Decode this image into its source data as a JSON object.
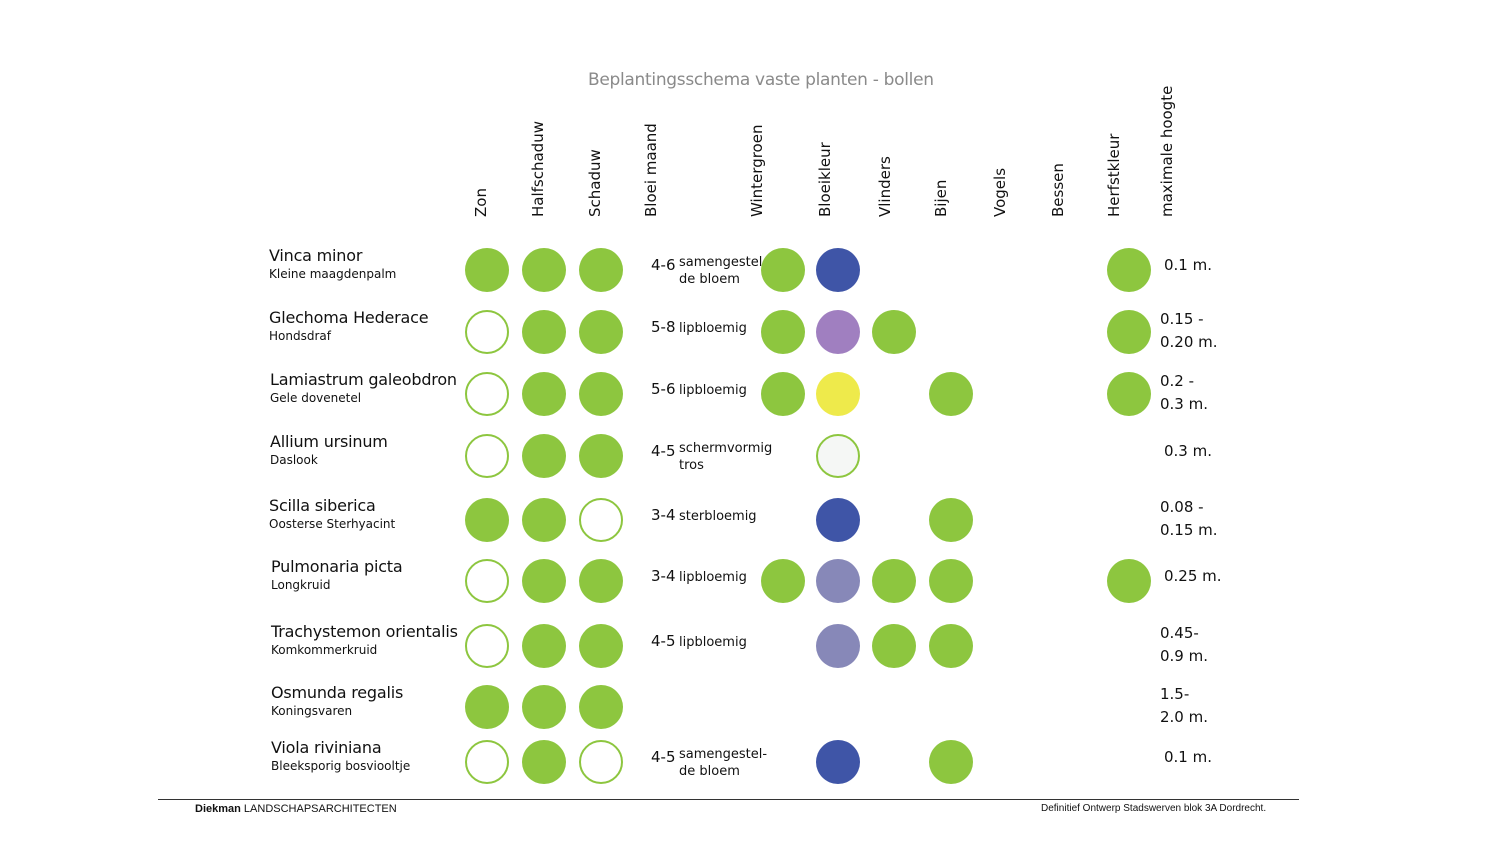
{
  "title": "Beplantingsschema vaste planten - bollen",
  "columns": {
    "zon": "Zon",
    "halfschaduw": "Halfschaduw",
    "schaduw": "Schaduw",
    "bloei_maand": "Bloei maand",
    "wintergroen": "Wintergroen",
    "bloeikleur": "Bloeikleur",
    "vlinders": "Vlinders",
    "bijen": "Bijen",
    "vogels": "Vogels",
    "bessen": "Bessen",
    "herfstkleur": "Herfstkleur",
    "maximale_hoogte": "maximale hoogte"
  },
  "colors": {
    "green": "#8dc63f",
    "blue": "#3f55a7",
    "purple": "#a07fc0",
    "yellow": "#eeea4b",
    "lilac": "#8788b8",
    "white": "#f5f7f5"
  },
  "plants": [
    {
      "name": "Vinca minor",
      "common": "Kleine maagdenpalm",
      "zon": "full",
      "halfschaduw": "full",
      "schaduw": "full",
      "month": "4-6",
      "bloom_type": "samengestel-\nde bloem",
      "wintergroen": true,
      "bloeikleur": "blue",
      "vlinders": false,
      "bijen": false,
      "herfstkleur": true,
      "height": "0.1 m."
    },
    {
      "name": "Glechoma Hederace",
      "common": "Hondsdraf",
      "zon": "empty",
      "halfschaduw": "full",
      "schaduw": "full",
      "month": "5-8",
      "bloom_type": "lipbloemig",
      "wintergroen": true,
      "bloeikleur": "purple",
      "vlinders": true,
      "bijen": false,
      "herfstkleur": true,
      "height": "0.15 -\n0.20 m."
    },
    {
      "name": "Lamiastrum galeobdron",
      "common": "Gele dovenetel",
      "zon": "empty",
      "halfschaduw": "full",
      "schaduw": "full",
      "month": "5-6",
      "bloom_type": "lipbloemig",
      "wintergroen": true,
      "bloeikleur": "yellow",
      "vlinders": false,
      "bijen": true,
      "herfstkleur": true,
      "height": "0.2 -\n0.3 m."
    },
    {
      "name": "Allium ursinum",
      "common": "Daslook",
      "zon": "empty",
      "halfschaduw": "full",
      "schaduw": "full",
      "month": "4-5",
      "bloom_type": "schermvormig\ntros",
      "wintergroen": false,
      "bloeikleur": "white",
      "vlinders": false,
      "bijen": false,
      "herfstkleur": false,
      "height": "0.3 m."
    },
    {
      "name": "Scilla siberica",
      "common": "Oosterse Sterhyacint",
      "zon": "full",
      "halfschaduw": "full",
      "schaduw": "empty",
      "month": "3-4",
      "bloom_type": "sterbloemig",
      "wintergroen": false,
      "bloeikleur": "blue",
      "vlinders": false,
      "bijen": true,
      "herfstkleur": false,
      "height": "0.08 -\n0.15 m."
    },
    {
      "name": "Pulmonaria picta",
      "common": "Longkruid",
      "zon": "empty",
      "halfschaduw": "full",
      "schaduw": "full",
      "month": "3-4",
      "bloom_type": "lipbloemig",
      "wintergroen": true,
      "bloeikleur": "lilac",
      "vlinders": true,
      "bijen": true,
      "herfstkleur": true,
      "height": "0.25 m."
    },
    {
      "name": "Trachystemon orientalis",
      "common": "Komkommerkruid",
      "zon": "empty",
      "halfschaduw": "full",
      "schaduw": "full",
      "month": "4-5",
      "bloom_type": "lipbloemig",
      "wintergroen": false,
      "bloeikleur": "lilac",
      "vlinders": true,
      "bijen": true,
      "herfstkleur": false,
      "height": "0.45-\n0.9 m."
    },
    {
      "name": "Osmunda regalis",
      "common": "Koningsvaren",
      "zon": "full",
      "halfschaduw": "full",
      "schaduw": "full",
      "month": "",
      "bloom_type": "",
      "wintergroen": false,
      "bloeikleur": "",
      "vlinders": false,
      "bijen": false,
      "herfstkleur": false,
      "height": "1.5-\n2.0 m."
    },
    {
      "name": "Viola riviniana",
      "common": "Bleeksporig bosviooltje",
      "zon": "empty",
      "halfschaduw": "full",
      "schaduw": "empty",
      "month": "4-5",
      "bloom_type": "samengestel-\nde bloem",
      "wintergroen": false,
      "bloeikleur": "blue",
      "vlinders": false,
      "bijen": true,
      "herfstkleur": false,
      "height": "0.1 m."
    }
  ],
  "footer": {
    "company_bold": "Diekman",
    "company_rest": " LANDSCHAPSARCHITECTEN",
    "project": "Definitief Ontwerp Stadswerven blok 3A Dordrecht."
  }
}
